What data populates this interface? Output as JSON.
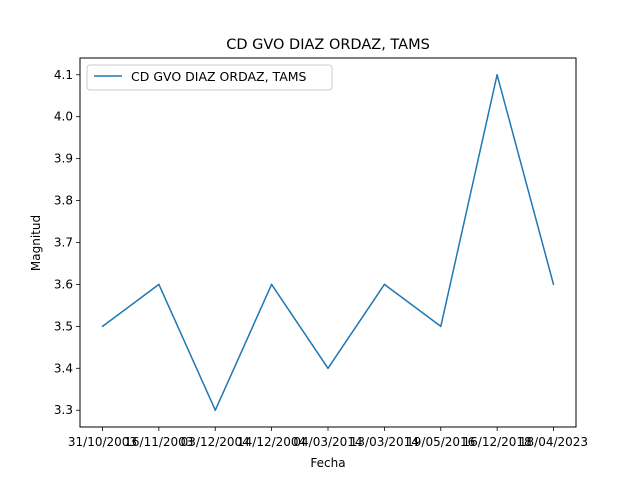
{
  "chart_data": {
    "type": "line",
    "title": "CD GVO DIAZ ORDAZ, TAMS",
    "xlabel": "Fecha",
    "ylabel": "Magnitud",
    "categories": [
      "31/10/2003",
      "16/11/2003",
      "03/12/2004",
      "14/12/2004",
      "04/03/2014",
      "13/03/2014",
      "19/05/2016",
      "16/12/2018",
      "18/04/2023"
    ],
    "series": [
      {
        "name": "CD GVO DIAZ ORDAZ, TAMS",
        "color": "#1f77b4",
        "values": [
          3.5,
          3.6,
          3.3,
          3.6,
          3.4,
          3.6,
          3.5,
          4.1,
          3.6
        ]
      }
    ],
    "yticks": [
      "3.3",
      "3.4",
      "3.5",
      "3.6",
      "3.7",
      "3.8",
      "3.9",
      "4.0",
      "4.1"
    ],
    "ylim": [
      3.26,
      4.14
    ],
    "grid": false,
    "legend_position": "upper-left"
  }
}
